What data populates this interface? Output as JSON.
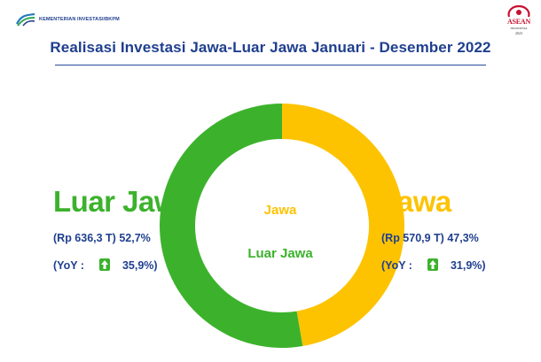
{
  "header": {
    "agency_logo_text": "KEMENTERIAN INVESTASI/BKPM",
    "asean_logo_text": "ASEAN",
    "asean_sub": "INDONESIA",
    "asean_year": "2023"
  },
  "title": "Realisasi Investasi Jawa-Luar Jawa Januari - Desember 2022",
  "colors": {
    "luar_jawa": "#3cb22c",
    "jawa": "#fdc300",
    "title": "#1f3f8f"
  },
  "left": {
    "name": "Luar Jawa",
    "value_line": "(Rp 636,3 T) 52,7%",
    "yoy_label": "(YoY :",
    "yoy_icon": "arrow-up-icon",
    "yoy_value": "35,9%)"
  },
  "right": {
    "name": "Jawa",
    "value_line": "(Rp 570,9 T) 47,3%",
    "yoy_label": "(YoY :",
    "yoy_icon": "arrow-up-icon",
    "yoy_value": "31,9%)"
  },
  "chart_data": {
    "type": "pie",
    "donut": true,
    "title": "Realisasi Investasi Jawa-Luar Jawa Januari - Desember 2022",
    "categories": [
      "Jawa",
      "Luar Jawa"
    ],
    "values": [
      47.3,
      52.7
    ],
    "values_rp_trillion": [
      570.9,
      636.3
    ],
    "yoy_growth_pct": [
      31.9,
      35.9
    ],
    "colors": [
      "#fdc300",
      "#3cb22c"
    ],
    "center_labels": [
      "Jawa",
      "Luar Jawa"
    ]
  }
}
